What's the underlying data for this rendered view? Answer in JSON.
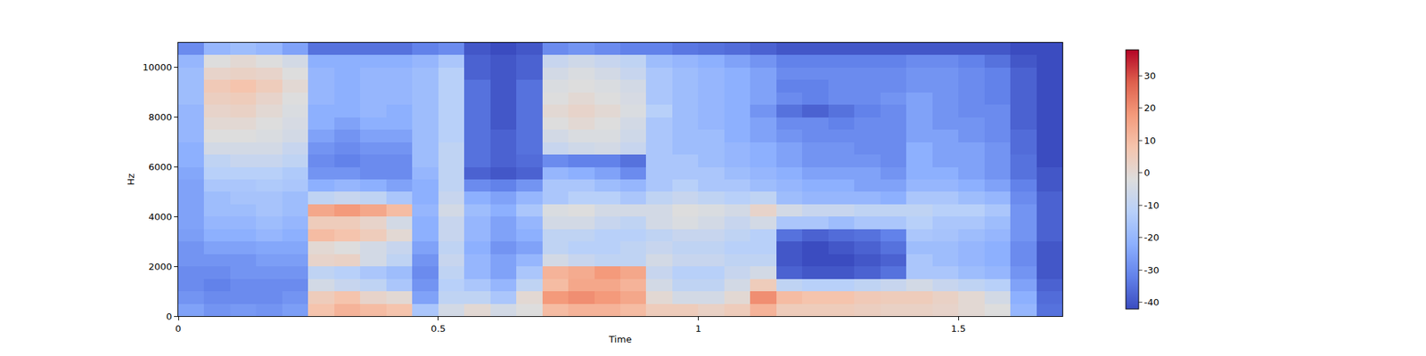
{
  "chart_data": {
    "type": "heatmap",
    "x_label": "Time",
    "y_label": "Hz",
    "grid": false,
    "xlim": [
      0,
      1.7
    ],
    "ylim": [
      0,
      11000
    ],
    "xticks": [
      0,
      0.5,
      1,
      1.5
    ],
    "yticks": [
      0,
      2000,
      4000,
      6000,
      8000,
      10000
    ],
    "colorbar": {
      "range": [
        -42,
        38
      ],
      "ticks": [
        -40,
        -30,
        -20,
        -10,
        0,
        10,
        20,
        30
      ]
    },
    "x": [
      0.025,
      0.075,
      0.125,
      0.175,
      0.225,
      0.275,
      0.325,
      0.375,
      0.425,
      0.475,
      0.525,
      0.575,
      0.625,
      0.675,
      0.725,
      0.775,
      0.825,
      0.875,
      0.925,
      0.975,
      1.025,
      1.075,
      1.125,
      1.175,
      1.225,
      1.275,
      1.325,
      1.375,
      1.425,
      1.475,
      1.525,
      1.575,
      1.625,
      1.675
    ],
    "y": [
      250,
      750,
      1250,
      1750,
      2250,
      2750,
      3250,
      3750,
      4250,
      4750,
      5250,
      5750,
      6250,
      6750,
      7250,
      7750,
      8250,
      8750,
      9250,
      9750,
      10250,
      10750
    ],
    "cells": [
      [
        -25,
        -28,
        -27,
        -28,
        -26,
        8,
        12,
        10,
        8,
        -15,
        -5,
        0,
        -5,
        -2,
        10,
        12,
        12,
        10,
        5,
        5,
        3,
        5,
        12,
        5,
        5,
        5,
        4,
        3,
        3,
        2,
        0,
        -2,
        -20,
        -35
      ],
      [
        -28,
        -30,
        -30,
        -30,
        -28,
        5,
        8,
        2,
        0,
        -25,
        -10,
        -10,
        -15,
        0,
        18,
        20,
        18,
        15,
        0,
        -5,
        -5,
        0,
        20,
        10,
        8,
        8,
        6,
        5,
        5,
        3,
        0,
        -5,
        -22,
        -36
      ],
      [
        -30,
        -32,
        -30,
        -30,
        -30,
        -5,
        -8,
        -10,
        -15,
        -28,
        -12,
        -15,
        -20,
        -10,
        10,
        15,
        15,
        12,
        -5,
        -10,
        -10,
        -5,
        5,
        -10,
        -12,
        -12,
        -10,
        -8,
        -5,
        -8,
        -10,
        -12,
        -25,
        -38
      ],
      [
        -30,
        -30,
        -28,
        -28,
        -28,
        -10,
        -12,
        -15,
        -18,
        -30,
        -10,
        -20,
        -25,
        -15,
        12,
        14,
        18,
        15,
        -8,
        -12,
        -12,
        -8,
        -5,
        -38,
        -40,
        -40,
        -38,
        -35,
        -15,
        -15,
        -18,
        -20,
        -28,
        -40
      ],
      [
        -28,
        -28,
        -28,
        -26,
        -26,
        2,
        3,
        -5,
        -10,
        -28,
        -8,
        -20,
        -25,
        -20,
        -5,
        -8,
        -10,
        -10,
        -5,
        -8,
        -8,
        -10,
        -10,
        -40,
        -42,
        -42,
        -40,
        -38,
        -15,
        -18,
        -20,
        -22,
        -30,
        -40
      ],
      [
        -28,
        -25,
        -25,
        -24,
        -24,
        0,
        -2,
        -5,
        -8,
        -25,
        -10,
        -22,
        -28,
        -25,
        -10,
        -12,
        -12,
        -10,
        -8,
        -10,
        -10,
        -12,
        -12,
        -40,
        -42,
        -40,
        -38,
        -35,
        -18,
        -18,
        -20,
        -22,
        -30,
        -40
      ],
      [
        -26,
        -22,
        -22,
        -20,
        -22,
        10,
        8,
        5,
        0,
        -22,
        -8,
        -20,
        -25,
        -22,
        -10,
        -10,
        -12,
        -12,
        -10,
        -8,
        -8,
        -10,
        -12,
        -35,
        -38,
        -36,
        -35,
        -32,
        -15,
        -16,
        -18,
        -20,
        -28,
        -38
      ],
      [
        -25,
        -20,
        -20,
        -18,
        -20,
        5,
        5,
        2,
        -5,
        -22,
        -8,
        -20,
        -25,
        -20,
        -5,
        -5,
        -8,
        -10,
        -5,
        -3,
        -5,
        -8,
        -5,
        -15,
        -15,
        -18,
        -15,
        -15,
        -12,
        -15,
        -15,
        -18,
        -28,
        -38
      ],
      [
        -25,
        -18,
        -18,
        -16,
        -18,
        15,
        18,
        15,
        10,
        -20,
        -5,
        -18,
        -22,
        -15,
        -3,
        -2,
        -5,
        -5,
        -5,
        -2,
        -3,
        -5,
        2,
        -5,
        -8,
        -8,
        -10,
        -10,
        -10,
        -12,
        -12,
        -15,
        -28,
        -38
      ],
      [
        -25,
        -18,
        -16,
        -16,
        -18,
        -10,
        -8,
        -10,
        -15,
        -22,
        -8,
        -22,
        -25,
        -20,
        -15,
        -12,
        -12,
        -15,
        -10,
        -8,
        -10,
        -12,
        -10,
        -18,
        -20,
        -20,
        -20,
        -22,
        -15,
        -15,
        -18,
        -20,
        -30,
        -38
      ],
      [
        -25,
        -15,
        -15,
        -14,
        -15,
        -22,
        -20,
        -22,
        -25,
        -22,
        -10,
        -30,
        -32,
        -28,
        -15,
        -15,
        -18,
        -20,
        -15,
        -12,
        -15,
        -15,
        -18,
        -20,
        -22,
        -22,
        -25,
        -25,
        -20,
        -20,
        -22,
        -25,
        -32,
        -40
      ],
      [
        -24,
        -12,
        -12,
        -12,
        -14,
        -28,
        -28,
        -30,
        -30,
        -20,
        -10,
        -38,
        -40,
        -38,
        -20,
        -22,
        -25,
        -30,
        -15,
        -15,
        -15,
        -18,
        -20,
        -22,
        -25,
        -25,
        -25,
        -28,
        -22,
        -22,
        -25,
        -28,
        -35,
        -40
      ],
      [
        -22,
        -10,
        -8,
        -8,
        -10,
        -30,
        -32,
        -30,
        -30,
        -18,
        -10,
        -35,
        -38,
        -36,
        -30,
        -32,
        -32,
        -35,
        -15,
        -15,
        -18,
        -20,
        -22,
        -25,
        -28,
        -28,
        -28,
        -30,
        -22,
        -25,
        -25,
        -28,
        -35,
        -42
      ],
      [
        -22,
        -5,
        -5,
        -5,
        -8,
        -28,
        -30,
        -28,
        -28,
        -18,
        -10,
        -35,
        -38,
        -35,
        -8,
        -6,
        -5,
        -8,
        -15,
        -18,
        -18,
        -20,
        -22,
        -25,
        -28,
        -28,
        -30,
        -30,
        -22,
        -25,
        -25,
        -28,
        -36,
        -42
      ],
      [
        -20,
        -2,
        -2,
        -3,
        -5,
        -25,
        -28,
        -25,
        -25,
        -18,
        -12,
        -35,
        -38,
        -35,
        -5,
        -3,
        -3,
        -6,
        -15,
        -18,
        -18,
        -22,
        -25,
        -28,
        -30,
        -30,
        -30,
        -30,
        -25,
        -25,
        -28,
        -30,
        -36,
        -42
      ],
      [
        -20,
        0,
        0,
        -2,
        -4,
        -22,
        -25,
        -22,
        -22,
        -18,
        -12,
        -35,
        -40,
        -35,
        -2,
        0,
        -2,
        -5,
        -15,
        -18,
        -20,
        -22,
        -25,
        -30,
        -30,
        -32,
        -30,
        -30,
        -25,
        -28,
        -28,
        -30,
        -38,
        -42
      ],
      [
        -20,
        2,
        3,
        0,
        -3,
        -22,
        -22,
        -20,
        -22,
        -18,
        -12,
        -35,
        -40,
        -35,
        0,
        2,
        0,
        -3,
        -12,
        -18,
        -20,
        -22,
        -28,
        -35,
        -38,
        -35,
        -32,
        -30,
        -25,
        -28,
        -30,
        -30,
        -38,
        -42
      ],
      [
        -18,
        4,
        5,
        2,
        -2,
        -20,
        -22,
        -20,
        -20,
        -18,
        -12,
        -35,
        -40,
        -35,
        -2,
        0,
        -2,
        -4,
        -15,
        -18,
        -20,
        -22,
        -25,
        -30,
        -32,
        -30,
        -30,
        -28,
        -25,
        -28,
        -30,
        -32,
        -38,
        -42
      ],
      [
        -18,
        6,
        8,
        5,
        0,
        -20,
        -22,
        -20,
        -20,
        -18,
        -12,
        -35,
        -40,
        -35,
        -3,
        -2,
        -3,
        -5,
        -15,
        -18,
        -20,
        -22,
        -25,
        -32,
        -32,
        -30,
        -30,
        -30,
        -28,
        -28,
        -30,
        -32,
        -38,
        -42
      ],
      [
        -18,
        2,
        3,
        2,
        -2,
        -20,
        -22,
        -20,
        -20,
        -18,
        -12,
        -38,
        -40,
        -38,
        -5,
        -3,
        -5,
        -8,
        -15,
        -18,
        -20,
        -22,
        -25,
        -30,
        -30,
        -30,
        -30,
        -30,
        -28,
        -28,
        -30,
        -32,
        -38,
        -42
      ],
      [
        -20,
        -2,
        0,
        -2,
        -5,
        -22,
        -22,
        -22,
        -22,
        -20,
        -15,
        -38,
        -40,
        -38,
        -8,
        -6,
        -8,
        -10,
        -18,
        -20,
        -22,
        -25,
        -28,
        -32,
        -32,
        -32,
        -32,
        -32,
        -30,
        -30,
        -32,
        -35,
        -40,
        -42
      ],
      [
        -30,
        -20,
        -18,
        -20,
        -25,
        -35,
        -35,
        -35,
        -35,
        -32,
        -30,
        -40,
        -42,
        -40,
        -30,
        -28,
        -30,
        -32,
        -32,
        -34,
        -35,
        -36,
        -38,
        -40,
        -40,
        -40,
        -40,
        -40,
        -40,
        -40,
        -40,
        -40,
        -42,
        -42
      ]
    ]
  }
}
